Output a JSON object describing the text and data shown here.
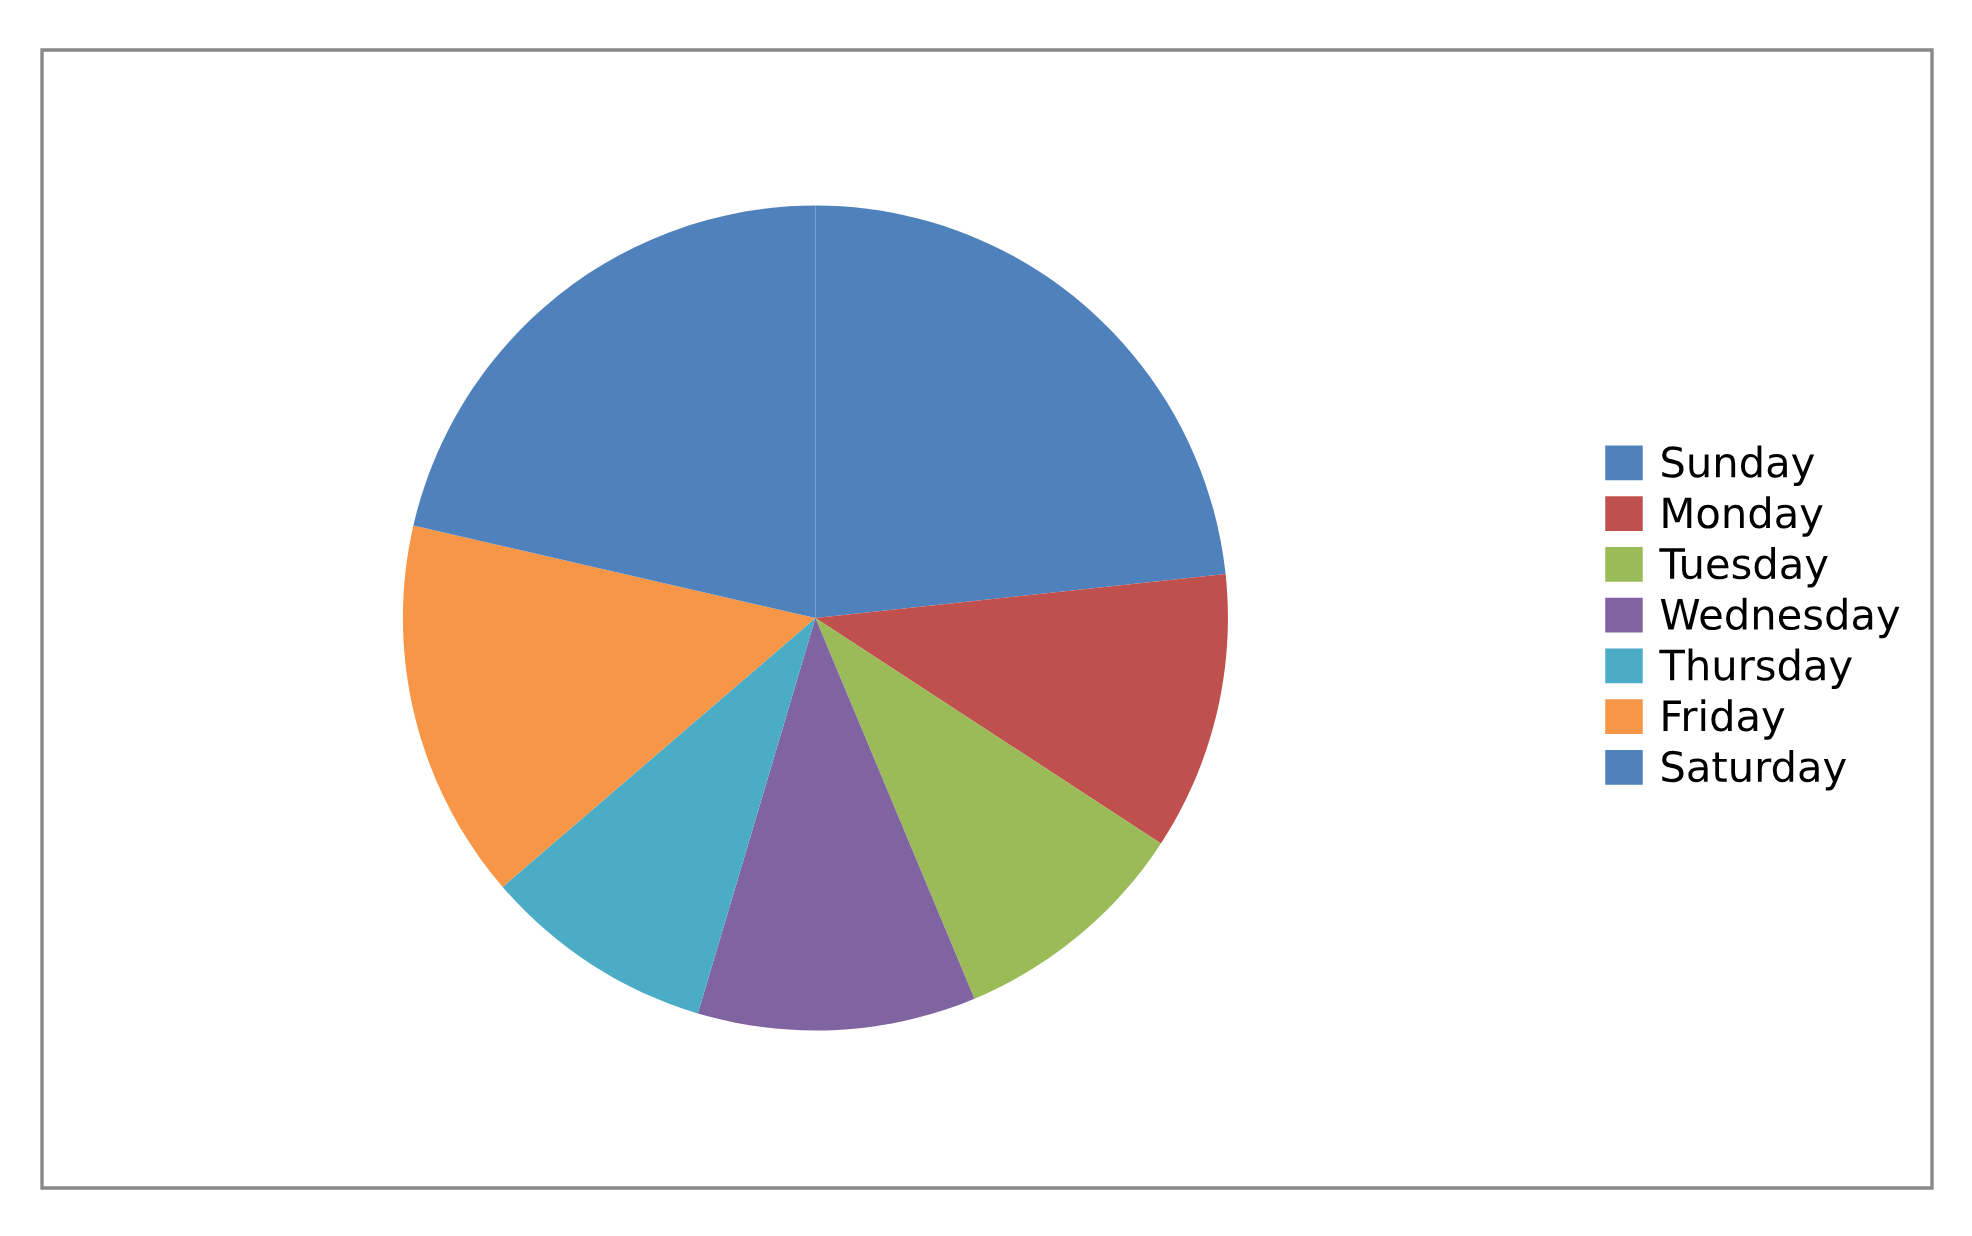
{
  "chart_data": {
    "type": "pie",
    "categories": [
      "Sunday",
      "Monday",
      "Tuesday",
      "Wednesday",
      "Thursday",
      "Friday",
      "Saturday"
    ],
    "values": [
      23.3,
      10.9,
      9.5,
      10.9,
      9.1,
      14.9,
      21.4
    ],
    "colors": [
      "#4f81bd",
      "#c0504d",
      "#9bbb59",
      "#8064a2",
      "#4bacc6",
      "#f79646",
      "#4f81bd"
    ],
    "legend": "right"
  }
}
